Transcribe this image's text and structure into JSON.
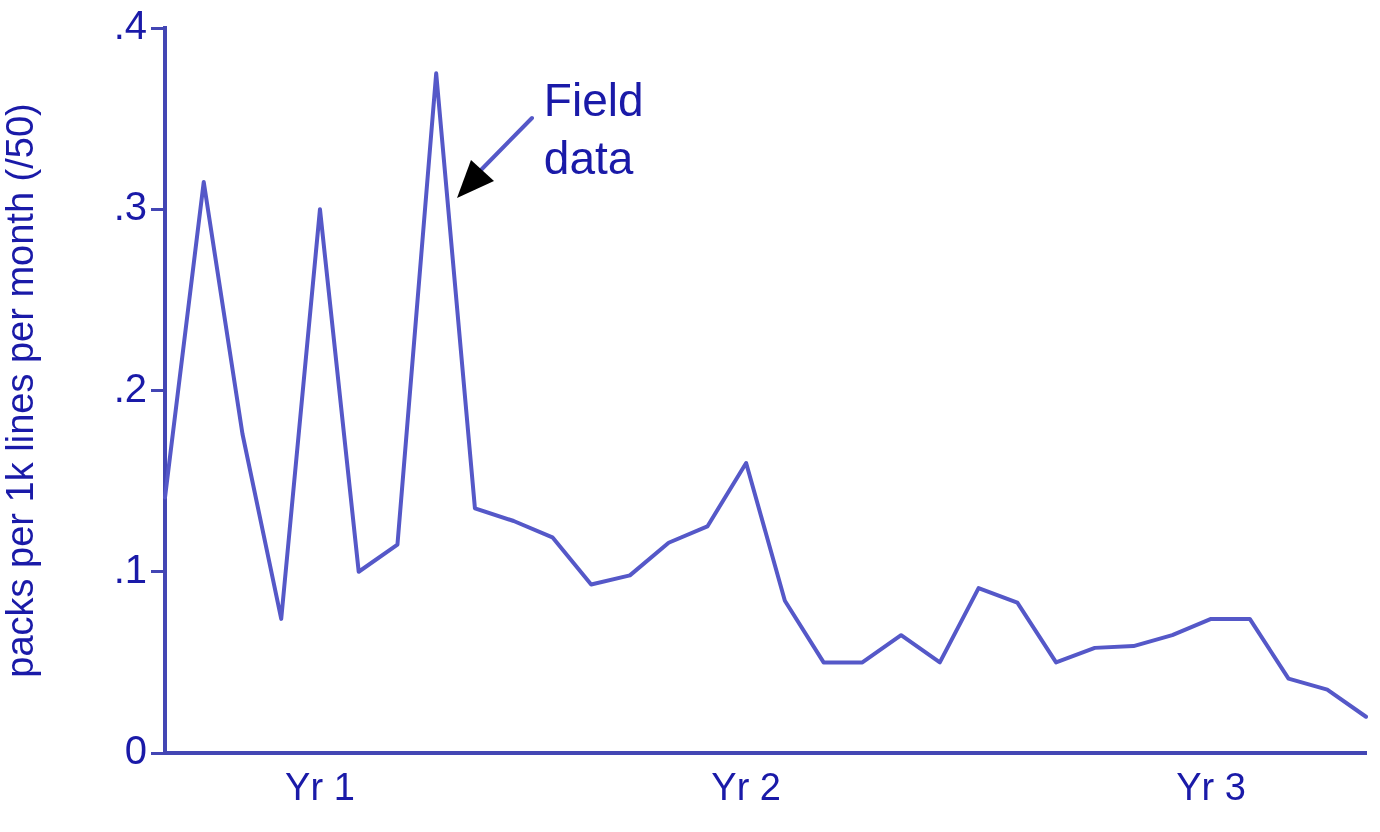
{
  "chart_data": {
    "type": "line",
    "ylabel": "packs per 1k lines per month (/50)",
    "categories": [
      null,
      null,
      null,
      null,
      "Yr 1",
      null,
      null,
      null,
      null,
      null,
      null,
      null,
      null,
      null,
      null,
      "Yr 2",
      null,
      null,
      null,
      null,
      null,
      null,
      null,
      null,
      null,
      null,
      null,
      "Yr 3",
      null,
      null,
      null,
      null
    ],
    "series": [
      {
        "color": "#5558c8",
        "values": [
          0.141,
          0.315,
          0.176,
          0.074,
          0.3,
          0.1,
          0.115,
          0.375,
          0.135,
          0.128,
          0.119,
          0.093,
          0.098,
          0.116,
          0.125,
          0.16,
          0.084,
          0.05,
          0.05,
          0.065,
          0.05,
          0.091,
          0.083,
          0.05,
          0.058,
          0.059,
          0.065,
          0.074,
          0.074,
          0.041,
          0.035,
          0.02
        ]
      }
    ],
    "ylim": [
      0,
      0.4
    ],
    "yticks": [
      0,
      {
        "value": 0.1,
        "label": ".1"
      },
      {
        "value": 0.2,
        "label": ".2"
      },
      {
        "value": 0.3,
        "label": ".3"
      },
      {
        "value": 0.4,
        "label": ".4"
      }
    ],
    "grid": false,
    "legend": false,
    "marker": "none",
    "line_style": "solid",
    "annotations": [
      "Field data"
    ]
  }
}
